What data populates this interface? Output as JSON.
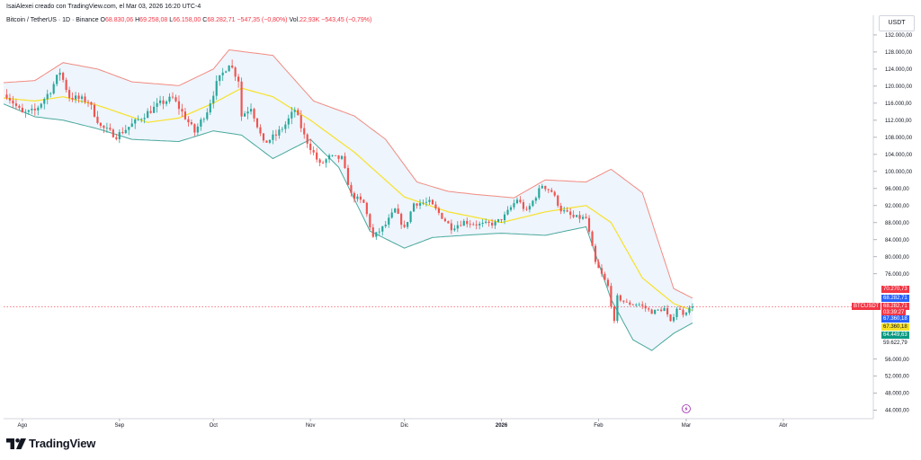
{
  "header": {
    "author_line": "IsaiAlexei creado con TradingView.com, el Mar 03, 2026 16:20 UTC-4"
  },
  "symbol": {
    "name": "Bitcoin / TetherUS · 1D · Binance",
    "open_label": "O",
    "open": "68.830,06",
    "high_label": "H",
    "high": "69.258,08",
    "low_label": "L",
    "low": "66.158,00",
    "close_label": "C",
    "close": "68.282,71",
    "change": "−547,35 (−0,80%)",
    "vol_label": "Vol.",
    "vol": "22,93K",
    "vol_change": "−543,45 (−0,79%)"
  },
  "currency": "USDT",
  "brand": "TradingView",
  "colors": {
    "up": "#26a69a",
    "down": "#ef5350",
    "upper_band": "#f28b82",
    "lower_band": "#4aa89e",
    "basis": "#f7e12a",
    "band_fill": "#eef5fc"
  },
  "price_tags": {
    "upper": {
      "value": "70.270,73",
      "color": "#f23645"
    },
    "symbol_label": "BTCUSDT",
    "last": {
      "value": "68.282,71",
      "color": "#2962ff"
    },
    "current": {
      "value": "68.282,71",
      "color": "#f23645"
    },
    "countdown": "03:39:27",
    "basis_value": {
      "value": "67.360,18",
      "color": "#2962ff"
    },
    "basis_tag": {
      "value": "67.360,18",
      "color": "#f7e12a"
    },
    "lower": {
      "value": "64.449,63",
      "color": "#089981"
    },
    "plain": "59.622,79"
  },
  "chart_data": {
    "type": "candlestick",
    "y_axis_labels": [
      "132.000,00",
      "128.000,00",
      "124.000,00",
      "120.000,00",
      "116.000,00",
      "112.000,00",
      "108.000,00",
      "104.000,00",
      "100.000,00",
      "96.000,00",
      "92.000,00",
      "88.000,00",
      "84.000,00",
      "80.000,00",
      "76.000,00",
      "56.000,00",
      "52.000,00",
      "48.000,00",
      "44.000,00"
    ],
    "y_axis_values": [
      132000,
      128000,
      124000,
      120000,
      116000,
      112000,
      108000,
      104000,
      100000,
      96000,
      92000,
      88000,
      84000,
      80000,
      76000,
      56000,
      52000,
      48000,
      44000
    ],
    "ylim": [
      42000,
      134500
    ],
    "x_axis_labels": [
      "Ago",
      "Sep",
      "Oct",
      "Nov",
      "Dic",
      "2026",
      "Feb",
      "Mar",
      "Abr"
    ],
    "x_axis_dates": [
      "2025-08-01",
      "2025-09-01",
      "2025-10-01",
      "2025-11-01",
      "2025-12-01",
      "2026-01-01",
      "2026-02-01",
      "2026-03-01",
      "2026-04-01"
    ],
    "xlim": [
      "2025-07-26",
      "2026-04-22"
    ],
    "last_price": 68282.71,
    "indicator": "Bollinger Bands",
    "close_anchors": [
      [
        "2025-07-27",
        118000
      ],
      [
        "2025-08-01",
        113500
      ],
      [
        "2025-08-05",
        114200
      ],
      [
        "2025-08-10",
        119000
      ],
      [
        "2025-08-13",
        123400
      ],
      [
        "2025-08-16",
        117500
      ],
      [
        "2025-08-22",
        116500
      ],
      [
        "2025-08-26",
        110500
      ],
      [
        "2025-08-31",
        108300
      ],
      [
        "2025-09-05",
        111000
      ],
      [
        "2025-09-10",
        113800
      ],
      [
        "2025-09-14",
        115900
      ],
      [
        "2025-09-18",
        117200
      ],
      [
        "2025-09-22",
        112700
      ],
      [
        "2025-09-25",
        109200
      ],
      [
        "2025-09-29",
        114300
      ],
      [
        "2025-10-02",
        120500
      ],
      [
        "2025-10-06",
        125500
      ],
      [
        "2025-10-09",
        121500
      ],
      [
        "2025-10-10",
        113000
      ],
      [
        "2025-10-13",
        115200
      ],
      [
        "2025-10-17",
        106500
      ],
      [
        "2025-10-21",
        108500
      ],
      [
        "2025-10-24",
        111000
      ],
      [
        "2025-10-27",
        114500
      ],
      [
        "2025-10-30",
        108300
      ],
      [
        "2025-11-04",
        101500
      ],
      [
        "2025-11-07",
        103300
      ],
      [
        "2025-11-11",
        103000
      ],
      [
        "2025-11-14",
        94500
      ],
      [
        "2025-11-18",
        92500
      ],
      [
        "2025-11-21",
        84500
      ],
      [
        "2025-11-25",
        87500
      ],
      [
        "2025-11-28",
        91000
      ],
      [
        "2025-12-01",
        86500
      ],
      [
        "2025-12-04",
        92500
      ],
      [
        "2025-12-09",
        92700
      ],
      [
        "2025-12-12",
        90200
      ],
      [
        "2025-12-16",
        86800
      ],
      [
        "2025-12-20",
        88200
      ],
      [
        "2025-12-25",
        87500
      ],
      [
        "2025-12-30",
        87800
      ],
      [
        "2026-01-02",
        89500
      ],
      [
        "2026-01-06",
        93500
      ],
      [
        "2026-01-09",
        90500
      ],
      [
        "2026-01-14",
        96800
      ],
      [
        "2026-01-17",
        95300
      ],
      [
        "2026-01-20",
        91000
      ],
      [
        "2026-01-24",
        89200
      ],
      [
        "2026-01-28",
        89000
      ],
      [
        "2026-01-31",
        78500
      ],
      [
        "2026-02-04",
        73000
      ],
      [
        "2026-02-06",
        64500
      ],
      [
        "2026-02-07",
        70500
      ],
      [
        "2026-02-10",
        69000
      ],
      [
        "2026-02-14",
        68800
      ],
      [
        "2026-02-18",
        67000
      ],
      [
        "2026-02-22",
        67800
      ],
      [
        "2026-02-24",
        64500
      ],
      [
        "2026-02-26",
        68000
      ],
      [
        "2026-02-28",
        66700
      ],
      [
        "2026-03-03",
        68282.71
      ]
    ],
    "bands": {
      "upper": [
        [
          "2025-07-26",
          120800
        ],
        [
          "2025-08-05",
          121300
        ],
        [
          "2025-08-14",
          125500
        ],
        [
          "2025-08-25",
          124000
        ],
        [
          "2025-09-05",
          121000
        ],
        [
          "2025-09-20",
          120100
        ],
        [
          "2025-10-01",
          124000
        ],
        [
          "2025-10-06",
          128500
        ],
        [
          "2025-10-20",
          127200
        ],
        [
          "2025-11-02",
          116500
        ],
        [
          "2025-11-15",
          113000
        ],
        [
          "2025-11-25",
          107500
        ],
        [
          "2025-12-05",
          97500
        ],
        [
          "2025-12-15",
          95300
        ],
        [
          "2025-12-25",
          94500
        ],
        [
          "2026-01-05",
          93800
        ],
        [
          "2026-01-15",
          98000
        ],
        [
          "2026-01-28",
          97500
        ],
        [
          "2026-02-05",
          100500
        ],
        [
          "2026-02-15",
          95000
        ],
        [
          "2026-02-25",
          72500
        ],
        [
          "2026-03-03",
          70270.73
        ]
      ],
      "basis": [
        [
          "2025-07-26",
          117200
        ],
        [
          "2025-08-05",
          116500
        ],
        [
          "2025-08-14",
          117500
        ],
        [
          "2025-08-25",
          115500
        ],
        [
          "2025-09-10",
          111500
        ],
        [
          "2025-09-20",
          112500
        ],
        [
          "2025-10-01",
          116000
        ],
        [
          "2025-10-10",
          119500
        ],
        [
          "2025-10-20",
          117500
        ],
        [
          "2025-11-01",
          112000
        ],
        [
          "2025-11-15",
          104500
        ],
        [
          "2025-12-01",
          94000
        ],
        [
          "2025-12-15",
          90500
        ],
        [
          "2026-01-01",
          88000
        ],
        [
          "2026-01-15",
          90500
        ],
        [
          "2026-01-28",
          92000
        ],
        [
          "2026-02-05",
          88000
        ],
        [
          "2026-02-15",
          75000
        ],
        [
          "2026-02-25",
          69000
        ],
        [
          "2026-03-03",
          67360.18
        ]
      ],
      "lower": [
        [
          "2025-07-26",
          115800
        ],
        [
          "2025-08-05",
          112800
        ],
        [
          "2025-08-14",
          112000
        ],
        [
          "2025-08-25",
          110000
        ],
        [
          "2025-09-05",
          107500
        ],
        [
          "2025-09-20",
          107000
        ],
        [
          "2025-10-01",
          109500
        ],
        [
          "2025-10-10",
          108500
        ],
        [
          "2025-10-20",
          103000
        ],
        [
          "2025-11-01",
          107500
        ],
        [
          "2025-11-10",
          101000
        ],
        [
          "2025-11-20",
          86000
        ],
        [
          "2025-12-01",
          82000
        ],
        [
          "2025-12-10",
          84500
        ],
        [
          "2025-12-20",
          85000
        ],
        [
          "2026-01-01",
          85500
        ],
        [
          "2026-01-15",
          85000
        ],
        [
          "2026-01-28",
          87000
        ],
        [
          "2026-02-05",
          70000
        ],
        [
          "2026-02-12",
          60500
        ],
        [
          "2026-02-18",
          58000
        ],
        [
          "2026-02-25",
          62000
        ],
        [
          "2026-03-03",
          64449.63
        ]
      ]
    }
  }
}
